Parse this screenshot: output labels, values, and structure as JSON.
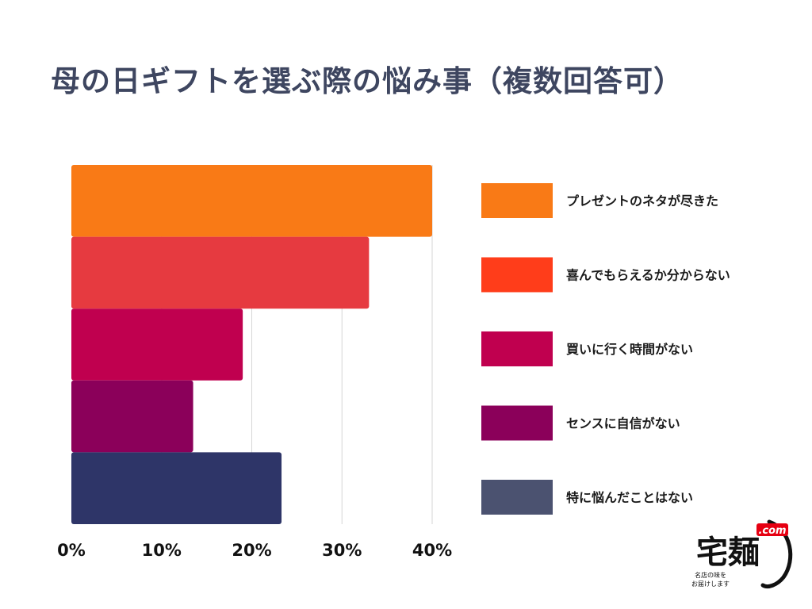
{
  "title": "母の日ギフトを選ぶ際の悩み事（複数回答可）",
  "chart_data": {
    "type": "bar",
    "orientation": "horizontal",
    "title": "母の日ギフトを選ぶ際の悩み事（複数回答可）",
    "categories": [
      "プレゼントのネタが尽きた",
      "喜んでもらえるか分からない",
      "買いに行く時間がない",
      "センスに自信がない",
      "特に悩んだことはない"
    ],
    "values": [
      40,
      33,
      19,
      13.5,
      23.3
    ],
    "bar_colors": [
      "#f97a16",
      "#e63a40",
      "#c0004f",
      "#8b005a",
      "#2e3568"
    ],
    "legend_colors": [
      "#f97a16",
      "#ff3d1a",
      "#c0004f",
      "#8b005a",
      "#4b5270"
    ],
    "xticks": [
      "0%",
      "10%",
      "20%",
      "30%",
      "40%"
    ],
    "xlim": [
      0,
      40
    ],
    "grid": true,
    "legend_position": "right"
  },
  "logo": {
    "text": "宅麺",
    "suffix": ".com",
    "tagline_1": "名店の味を",
    "tagline_2": "お届けします",
    "accent_color": "#e60012"
  }
}
